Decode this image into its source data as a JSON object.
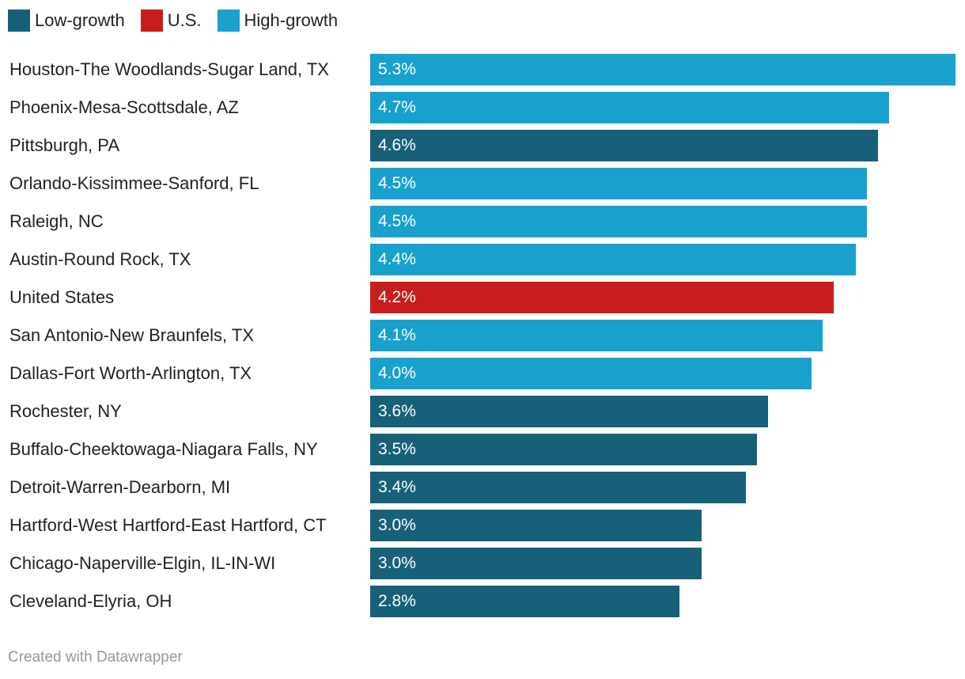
{
  "legend": [
    {
      "label": "Low-growth",
      "color": "#17607a"
    },
    {
      "label": "U.S.",
      "color": "#c71e1d"
    },
    {
      "label": "High-growth",
      "color": "#18a1cd"
    }
  ],
  "chart_data": {
    "type": "bar",
    "orientation": "horizontal",
    "categories": [
      "Houston-The Woodlands-Sugar Land, TX",
      "Phoenix-Mesa-Scottsdale, AZ",
      "Pittsburgh, PA",
      "Orlando-Kissimmee-Sanford, FL",
      "Raleigh, NC",
      "Austin-Round Rock, TX",
      "United States",
      "San Antonio-New Braunfels, TX",
      "Dallas-Fort Worth-Arlington, TX",
      "Rochester, NY",
      "Buffalo-Cheektowaga-Niagara Falls, NY",
      "Detroit-Warren-Dearborn, MI",
      "Hartford-West Hartford-East Hartford, CT",
      "Chicago-Naperville-Elgin, IL-IN-WI",
      "Cleveland-Elyria, OH"
    ],
    "values": [
      5.3,
      4.7,
      4.6,
      4.5,
      4.5,
      4.4,
      4.2,
      4.1,
      4.0,
      3.6,
      3.5,
      3.4,
      3.0,
      3.0,
      2.8
    ],
    "labels": [
      "5.3%",
      "4.7%",
      "4.6%",
      "4.5%",
      "4.5%",
      "4.4%",
      "4.2%",
      "4.1%",
      "4.0%",
      "3.6%",
      "3.5%",
      "3.4%",
      "3.0%",
      "3.0%",
      "2.8%"
    ],
    "groups": [
      "High-growth",
      "High-growth",
      "Low-growth",
      "High-growth",
      "High-growth",
      "High-growth",
      "U.S.",
      "High-growth",
      "High-growth",
      "Low-growth",
      "Low-growth",
      "Low-growth",
      "Low-growth",
      "Low-growth",
      "Low-growth"
    ],
    "xlim": [
      0,
      5.3
    ],
    "title": "",
    "xlabel": "",
    "ylabel": "",
    "legend_position": "top-left"
  },
  "footer": {
    "credit": "Created with Datawrapper"
  }
}
